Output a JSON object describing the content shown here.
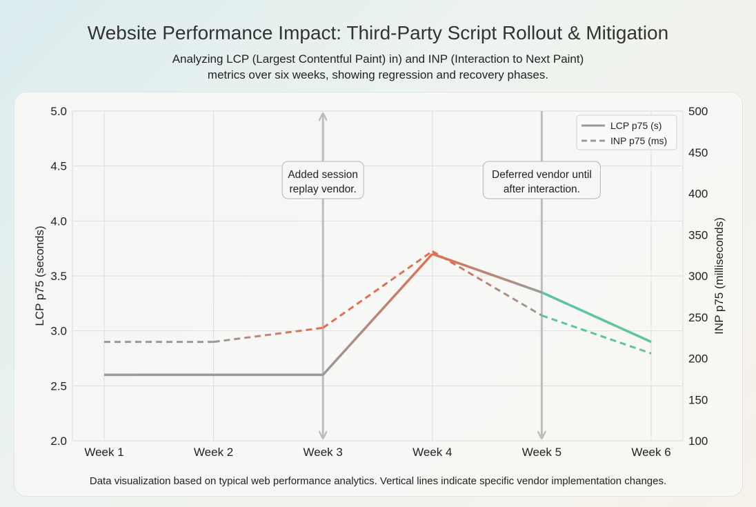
{
  "title": "Website Performance Impact: Third-Party Script Rollout & Mitigation",
  "subtitle": "Analyzing LCP (Largest Contentful Paint) in) and INP (Interaction to Next Paint) metrics over six weeks, showing regression and recovery phases.",
  "footnote": "Data visualization based on typical web performance analytics. Vertical lines indicate specific vendor implementation changes.",
  "chart_data": {
    "type": "line",
    "categories": [
      "Week 1",
      "Week 2",
      "Week 3",
      "Week 4",
      "Week 5",
      "Week 6"
    ],
    "ylabel": "LCP p75 (seconds)",
    "ylabel_right": "INP p75 (milliseconds)",
    "ylim": [
      2.0,
      5.0
    ],
    "yticks": [
      "2.0",
      "2.5",
      "3.0",
      "3.5",
      "4.0",
      "4.5",
      "5.0"
    ],
    "ylim_right": [
      100,
      500
    ],
    "yticks_right": [
      "100",
      "150",
      "200",
      "250",
      "300",
      "350",
      "400",
      "450",
      "500"
    ],
    "grid": true,
    "legend": "top-right",
    "series": [
      {
        "name": "LCP p75 (s)",
        "axis": "left",
        "style": "solid",
        "values": [
          2.6,
          2.6,
          2.6,
          3.7,
          3.35,
          2.9
        ]
      },
      {
        "name": "INP p75 (ms)",
        "axis": "right",
        "style": "dashed",
        "values": [
          220,
          220,
          237,
          330,
          252,
          206
        ]
      }
    ],
    "annotations": [
      {
        "category": "Week 3",
        "text": [
          "Added session",
          "replay vendor."
        ]
      },
      {
        "category": "Week 5",
        "text": [
          "Deferred vendor until",
          "after interaction."
        ]
      }
    ],
    "colors": {
      "baseline": "#999999",
      "regression": "#e0704f",
      "recovery": "#5cc4a0",
      "grid": "#dcdcdc",
      "annotation_line": "#bdbdbd"
    }
  }
}
